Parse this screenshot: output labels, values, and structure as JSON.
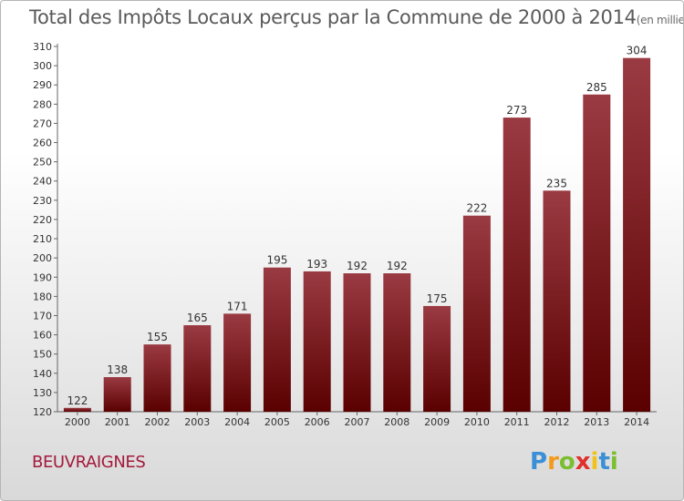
{
  "title": "Total des Impôts Locaux perçus par la Commune de 2000 à 2014",
  "unit": "(en milliers d'€)",
  "commune": "BEUVRAIGNES",
  "logo": {
    "text": "Proxiti"
  },
  "colors": {
    "bar_light": "#9a3a42",
    "bar_dark": "#5a0000",
    "commune": "#a31a3b"
  },
  "chart_data": {
    "type": "bar",
    "title": "Total des Impôts Locaux perçus par la Commune de 2000 à 2014",
    "categories": [
      "2000",
      "2001",
      "2002",
      "2003",
      "2004",
      "2005",
      "2006",
      "2007",
      "2008",
      "2009",
      "2010",
      "2011",
      "2012",
      "2013",
      "2014"
    ],
    "values": [
      122,
      138,
      155,
      165,
      171,
      195,
      193,
      192,
      192,
      175,
      222,
      273,
      235,
      285,
      304
    ],
    "ylim": [
      120,
      310
    ],
    "yticks": [
      120,
      130,
      140,
      150,
      160,
      170,
      180,
      190,
      200,
      210,
      220,
      230,
      240,
      250,
      260,
      270,
      280,
      290,
      300,
      310
    ],
    "grid": false
  }
}
